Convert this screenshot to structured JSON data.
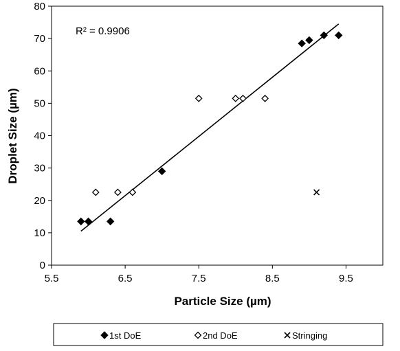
{
  "chart_data": {
    "type": "scatter",
    "xlabel": "Particle Size (µm)",
    "ylabel": "Droplet Size (µm)",
    "xlim": [
      5.5,
      10.0
    ],
    "ylim": [
      0,
      80
    ],
    "xticks": [
      5.5,
      6.5,
      7.5,
      8.5,
      9.5
    ],
    "xtick_labels": [
      "5.5",
      "6.5",
      "7.5",
      "8.5",
      "9.5"
    ],
    "yticks": [
      0,
      10,
      20,
      30,
      40,
      50,
      60,
      70,
      80
    ],
    "ytick_labels": [
      "0",
      "10",
      "20",
      "30",
      "40",
      "50",
      "60",
      "70",
      "80"
    ],
    "grid": false,
    "legend_position": "bottom",
    "annotation": "R² = 0.9906",
    "series": [
      {
        "name": "1st DoE",
        "marker": "filled-diamond",
        "color": "#000000",
        "x": [
          5.9,
          6.0,
          6.3,
          7.0,
          8.9,
          9.0,
          9.2,
          9.4
        ],
        "y": [
          13.5,
          13.5,
          13.5,
          29,
          68.5,
          69.5,
          71,
          71
        ]
      },
      {
        "name": "2nd DoE",
        "marker": "open-diamond",
        "color": "#000000",
        "x": [
          6.1,
          6.4,
          6.6,
          7.5,
          8.0,
          8.1,
          8.4
        ],
        "y": [
          22.5,
          22.5,
          22.5,
          51.5,
          51.5,
          51.5,
          51.5
        ]
      },
      {
        "name": "Stringing",
        "marker": "x",
        "color": "#000000",
        "x": [
          9.1
        ],
        "y": [
          22.5
        ]
      }
    ],
    "trendline": {
      "x": [
        5.9,
        9.4
      ],
      "y": [
        10.5,
        74.5
      ]
    }
  }
}
